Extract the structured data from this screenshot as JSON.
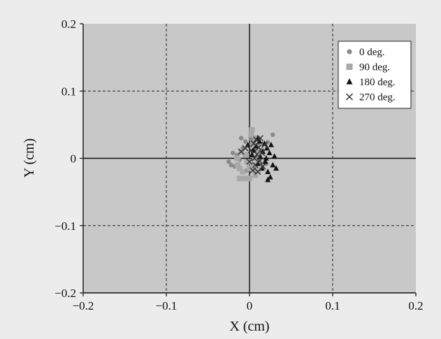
{
  "chart_data": {
    "type": "scatter",
    "xlabel": "X (cm)",
    "ylabel": "Y (cm)",
    "xlim": [
      -0.2,
      0.2
    ],
    "ylim": [
      -0.2,
      0.2
    ],
    "xticks": [
      "-0.2",
      "-0.1",
      "0",
      "0.1",
      "0.2"
    ],
    "yticks": [
      "-0.2",
      "-0.1",
      "0",
      "0.1",
      "0.2"
    ],
    "grid": true,
    "legend_position": "top-right",
    "plot_background": "#c8c8c8",
    "page_background": "#ececec",
    "series": [
      {
        "name": "0 deg.",
        "marker": "circle",
        "color": "#8a8a8a",
        "points": [
          [
            -0.025,
            -0.005
          ],
          [
            -0.022,
            -0.01
          ],
          [
            -0.02,
            0.008
          ],
          [
            -0.018,
            -0.012
          ],
          [
            -0.015,
            0.005
          ],
          [
            -0.012,
            -0.002
          ],
          [
            -0.01,
            0.03
          ],
          [
            -0.008,
            0.015
          ],
          [
            -0.005,
            0.025
          ],
          [
            -0.003,
            -0.018
          ],
          [
            0.0,
            0.018
          ],
          [
            0.002,
            0.028
          ],
          [
            0.004,
            0.01
          ],
          [
            0.007,
            -0.015
          ],
          [
            0.01,
            0.02
          ],
          [
            0.012,
            -0.005
          ],
          [
            0.015,
            0.012
          ],
          [
            0.02,
            -0.008
          ],
          [
            0.022,
            0.024
          ],
          [
            0.028,
            0.035
          ]
        ]
      },
      {
        "name": "90 deg.",
        "marker": "square",
        "color": "#a8a8a8",
        "points": [
          [
            -0.015,
            0.0
          ],
          [
            -0.014,
            -0.01
          ],
          [
            -0.012,
            -0.015
          ],
          [
            -0.012,
            -0.03
          ],
          [
            -0.01,
            0.01
          ],
          [
            -0.008,
            -0.02
          ],
          [
            -0.006,
            -0.03
          ],
          [
            -0.005,
            0.005
          ],
          [
            -0.003,
            -0.005
          ],
          [
            0.0,
            -0.015
          ],
          [
            0.0,
            -0.03
          ],
          [
            0.002,
            0.035
          ],
          [
            0.003,
            0.042
          ],
          [
            0.004,
            0.02
          ],
          [
            0.005,
            -0.01
          ],
          [
            0.006,
            0.0
          ],
          [
            0.007,
            -0.025
          ],
          [
            0.008,
            0.03
          ],
          [
            0.009,
            0.012
          ],
          [
            0.01,
            -0.018
          ],
          [
            0.012,
            0.005
          ],
          [
            0.014,
            -0.008
          ]
        ]
      },
      {
        "name": "180 deg.",
        "marker": "triangle",
        "color": "#111111",
        "points": [
          [
            -0.002,
            0.02
          ],
          [
            0.003,
            0.005
          ],
          [
            0.005,
            0.012
          ],
          [
            0.008,
            0.018
          ],
          [
            0.01,
            -0.008
          ],
          [
            0.012,
            0.025
          ],
          [
            0.013,
            0.002
          ],
          [
            0.015,
            -0.015
          ],
          [
            0.016,
            0.01
          ],
          [
            0.018,
            0.022
          ],
          [
            0.019,
            -0.005
          ],
          [
            0.02,
            0.0
          ],
          [
            0.021,
            0.015
          ],
          [
            0.022,
            -0.02
          ],
          [
            0.024,
            0.008
          ],
          [
            0.025,
            -0.028
          ],
          [
            0.026,
            0.02
          ],
          [
            0.028,
            -0.01
          ],
          [
            0.03,
            0.003
          ],
          [
            0.032,
            -0.015
          ],
          [
            0.022,
            -0.032
          ],
          [
            0.01,
            0.03
          ]
        ]
      },
      {
        "name": "270 deg.",
        "marker": "x",
        "color": "#333333",
        "points": [
          [
            -0.01,
            0.01
          ],
          [
            -0.005,
            0.015
          ],
          [
            0.0,
            -0.005
          ],
          [
            0.002,
            0.012
          ],
          [
            0.004,
            -0.018
          ],
          [
            0.005,
            0.022
          ],
          [
            0.006,
            0.0
          ],
          [
            0.007,
            -0.01
          ],
          [
            0.008,
            0.028
          ],
          [
            0.009,
            0.006
          ],
          [
            0.01,
            -0.02
          ],
          [
            0.011,
            0.016
          ],
          [
            0.012,
            -0.004
          ],
          [
            0.013,
            0.03
          ],
          [
            0.015,
            0.008
          ],
          [
            0.016,
            -0.012
          ],
          [
            0.018,
            0.02
          ]
        ]
      }
    ]
  }
}
